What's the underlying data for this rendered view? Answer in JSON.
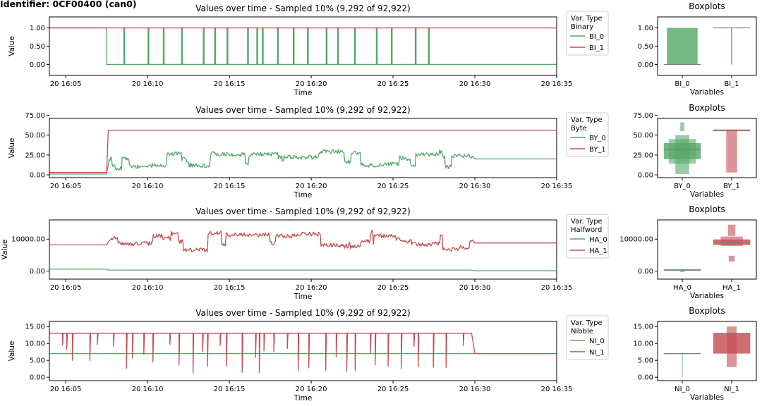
{
  "figure": {
    "identifier": "Identifier: 0CF00400 (can0)"
  },
  "chart_data": [
    {
      "type": "line",
      "title": "Values over time - Sampled 10% (9,292 of 92,922)",
      "xlabel": "Time",
      "ylabel": "Value",
      "x_ticks": [
        "20 16:05",
        "20 16:10",
        "20 16:15",
        "20 16:20",
        "20 16:25",
        "20 16:30",
        "20 16:35"
      ],
      "xlim": [
        "16:04",
        "16:35"
      ],
      "ylim": [
        -0.3,
        1.3
      ],
      "y_ticks": [
        "0.00",
        "0.50",
        "1.00"
      ],
      "y_tick_values": [
        0,
        0.5,
        1
      ],
      "legend": {
        "title": "Var. Type",
        "subtitle": "Binary",
        "placement": "right",
        "entries": [
          "BI_0",
          "BI_1"
        ]
      },
      "series": [
        {
          "name": "BI_0",
          "color": "#55a868",
          "pattern": "binary_green",
          "points": [
            [
              "16:04",
              1
            ],
            [
              "16:07.5",
              1
            ],
            [
              "16:07.5",
              0
            ],
            [
              "16:29.8",
              0
            ],
            [
              "16:35",
              0
            ]
          ]
        },
        {
          "name": "BI_1",
          "color": "#c44e52",
          "pattern": "flat",
          "points": [
            [
              "16:04",
              1
            ],
            [
              "16:35",
              1
            ]
          ]
        }
      ],
      "boxplot": {
        "title": "Boxplots",
        "xlabel": "Variables",
        "categories": [
          "BI_0",
          "BI_1"
        ],
        "ylim": [
          -0.3,
          1.3
        ],
        "y_ticks": [
          "0.00",
          "0.50",
          "1.00"
        ],
        "y_tick_values": [
          0,
          0.5,
          1
        ],
        "boxes": [
          {
            "name": "BI_0",
            "color": "#55a868",
            "median": 0,
            "levels": [
              {
                "lo": 0,
                "hi": 1,
                "w": 0.62
              }
            ]
          },
          {
            "name": "BI_1",
            "color": "#c44e52",
            "median": 1,
            "levels": [
              {
                "lo": 0,
                "hi": 1,
                "w": 0.02
              }
            ]
          }
        ]
      }
    },
    {
      "type": "line",
      "title": "Values over time - Sampled 10% (9,292 of 92,922)",
      "xlabel": "Time",
      "ylabel": "Value",
      "x_ticks": [
        "20 16:05",
        "20 16:10",
        "20 16:15",
        "20 16:20",
        "20 16:25",
        "20 16:30",
        "20 16:35"
      ],
      "xlim": [
        "16:04",
        "16:35"
      ],
      "ylim": [
        -3.5,
        71
      ],
      "y_ticks": [
        "0.00",
        "25.00",
        "50.00",
        "75.00"
      ],
      "y_tick_values": [
        0,
        25,
        50,
        75
      ],
      "legend": {
        "title": "Var. Type",
        "subtitle": "Byte",
        "placement": "right",
        "entries": [
          "BY_0",
          "BY_1"
        ]
      },
      "series": [
        {
          "name": "BY_0",
          "color": "#55a868",
          "pattern": "noise",
          "points": [
            [
              "16:04",
              1
            ],
            [
              "16:07.5",
              1
            ],
            [
              "16:07.6",
              20
            ],
            [
              "16:29.8",
              35
            ],
            [
              "16:30",
              20
            ],
            [
              "16:35",
              20
            ]
          ]
        },
        {
          "name": "BY_1",
          "color": "#c44e52",
          "pattern": "flat",
          "points": [
            [
              "16:04",
              3
            ],
            [
              "16:07.5",
              3
            ],
            [
              "16:07.6",
              56
            ],
            [
              "16:35",
              56
            ]
          ]
        }
      ],
      "boxplot": {
        "title": "Boxplots",
        "xlabel": "Variables",
        "categories": [
          "BY_0",
          "BY_1"
        ],
        "ylim": [
          -3.5,
          71
        ],
        "y_ticks": [
          "0.00",
          "25.00",
          "50.00",
          "75.00"
        ],
        "y_tick_values": [
          0,
          25,
          50,
          75
        ],
        "boxes": [
          {
            "name": "BY_0",
            "color": "#55a868",
            "median": 32,
            "levels": [
              {
                "lo": 20,
                "hi": 40,
                "w": 0.75
              },
              {
                "lo": 14,
                "hi": 45,
                "w": 0.55
              },
              {
                "lo": 1,
                "hi": 50,
                "w": 0.28
              },
              {
                "lo": 55,
                "hi": 66,
                "w": 0.08
              }
            ]
          },
          {
            "name": "BY_1",
            "color": "#c44e52",
            "median": 56,
            "levels": [
              {
                "lo": 55,
                "hi": 57,
                "w": 0.75
              },
              {
                "lo": 3,
                "hi": 57,
                "w": 0.22
              }
            ]
          }
        ]
      }
    },
    {
      "type": "line",
      "title": "Values over time - Sampled 10% (9,292 of 92,922)",
      "xlabel": "Time",
      "ylabel": "Value",
      "x_ticks": [
        "20 16:05",
        "20 16:10",
        "20 16:15",
        "20 16:20",
        "20 16:25",
        "20 16:30",
        "20 16:35"
      ],
      "xlim": [
        "16:04",
        "16:35"
      ],
      "ylim": [
        -2500,
        16000
      ],
      "y_ticks": [
        "0.00",
        "10000.00"
      ],
      "y_tick_values": [
        0,
        10000
      ],
      "legend": {
        "title": "Var. Type",
        "subtitle": "Halfword",
        "placement": "right",
        "entries": [
          "HA_0",
          "HA_1"
        ]
      },
      "series": [
        {
          "name": "HA_0",
          "color": "#55a868",
          "pattern": "flat",
          "points": [
            [
              "16:04",
              600
            ],
            [
              "16:07.5",
              600
            ],
            [
              "16:07.6",
              350
            ],
            [
              "16:29.8",
              350
            ],
            [
              "16:30",
              100
            ],
            [
              "16:35",
              100
            ]
          ]
        },
        {
          "name": "HA_1",
          "color": "#c44e52",
          "pattern": "noise",
          "points": [
            [
              "16:04",
              8200
            ],
            [
              "16:07.5",
              8200
            ],
            [
              "16:07.6",
              9300
            ],
            [
              "16:29.8",
              9300
            ],
            [
              "16:30",
              8800
            ],
            [
              "16:35",
              8800
            ]
          ]
        }
      ],
      "boxplot": {
        "title": "Boxplots",
        "xlabel": "Variables",
        "categories": [
          "HA_0",
          "HA_1"
        ],
        "ylim": [
          -2500,
          16000
        ],
        "y_ticks": [
          "0.00",
          "10000.00"
        ],
        "y_tick_values": [
          0,
          10000
        ],
        "boxes": [
          {
            "name": "HA_0",
            "color": "#55a868",
            "median": 300,
            "levels": [
              {
                "lo": 100,
                "hi": 600,
                "w": 0.75
              },
              {
                "lo": -300,
                "hi": 100,
                "w": 0.1
              }
            ]
          },
          {
            "name": "HA_1",
            "color": "#c44e52",
            "median": 9000,
            "levels": [
              {
                "lo": 8200,
                "hi": 9900,
                "w": 0.75
              },
              {
                "lo": 7800,
                "hi": 10800,
                "w": 0.45
              },
              {
                "lo": 11000,
                "hi": 14500,
                "w": 0.15
              },
              {
                "lo": 3000,
                "hi": 4800,
                "w": 0.12
              }
            ]
          }
        ]
      }
    },
    {
      "type": "line",
      "title": "Values over time - Sampled 10% (9,292 of 92,922)",
      "xlabel": "Time",
      "ylabel": "Value",
      "x_ticks": [
        "20 16:05",
        "20 16:10",
        "20 16:15",
        "20 16:20",
        "20 16:25",
        "20 16:30",
        "20 16:35"
      ],
      "xlim": [
        "16:04",
        "16:35"
      ],
      "ylim": [
        -1,
        16.5
      ],
      "y_ticks": [
        "0.00",
        "5.00",
        "10.00",
        "15.00"
      ],
      "y_tick_values": [
        0,
        5,
        10,
        15
      ],
      "legend": {
        "title": "Var. Type",
        "subtitle": "Nibble",
        "placement": "right",
        "entries": [
          "NI_0",
          "NI_1"
        ]
      },
      "series": [
        {
          "name": "NI_0",
          "color": "#55a868",
          "pattern": "flat",
          "points": [
            [
              "16:04",
              7
            ],
            [
              "16:35",
              7
            ]
          ]
        },
        {
          "name": "NI_1",
          "color": "#c44e52",
          "pattern": "spikes_down",
          "points": [
            [
              "16:04",
              13
            ],
            [
              "16:29.8",
              13
            ],
            [
              "16:30",
              7
            ],
            [
              "16:35",
              7
            ]
          ]
        }
      ],
      "boxplot": {
        "title": "Boxplots",
        "xlabel": "Variables",
        "categories": [
          "NI_0",
          "NI_1"
        ],
        "ylim": [
          -1,
          16.5
        ],
        "y_ticks": [
          "0.00",
          "5.00",
          "10.00",
          "15.00"
        ],
        "y_tick_values": [
          0,
          5,
          10,
          15
        ],
        "boxes": [
          {
            "name": "NI_0",
            "color": "#55a868",
            "median": 7,
            "levels": [
              {
                "lo": 7,
                "hi": 7.05,
                "w": 0.75
              },
              {
                "lo": 0,
                "hi": 7,
                "w": 0.02
              }
            ]
          },
          {
            "name": "NI_1",
            "color": "#c44e52",
            "median": 13,
            "levels": [
              {
                "lo": 7,
                "hi": 13,
                "w": 0.75
              },
              {
                "lo": 3,
                "hi": 15,
                "w": 0.2
              }
            ]
          }
        ]
      }
    }
  ]
}
